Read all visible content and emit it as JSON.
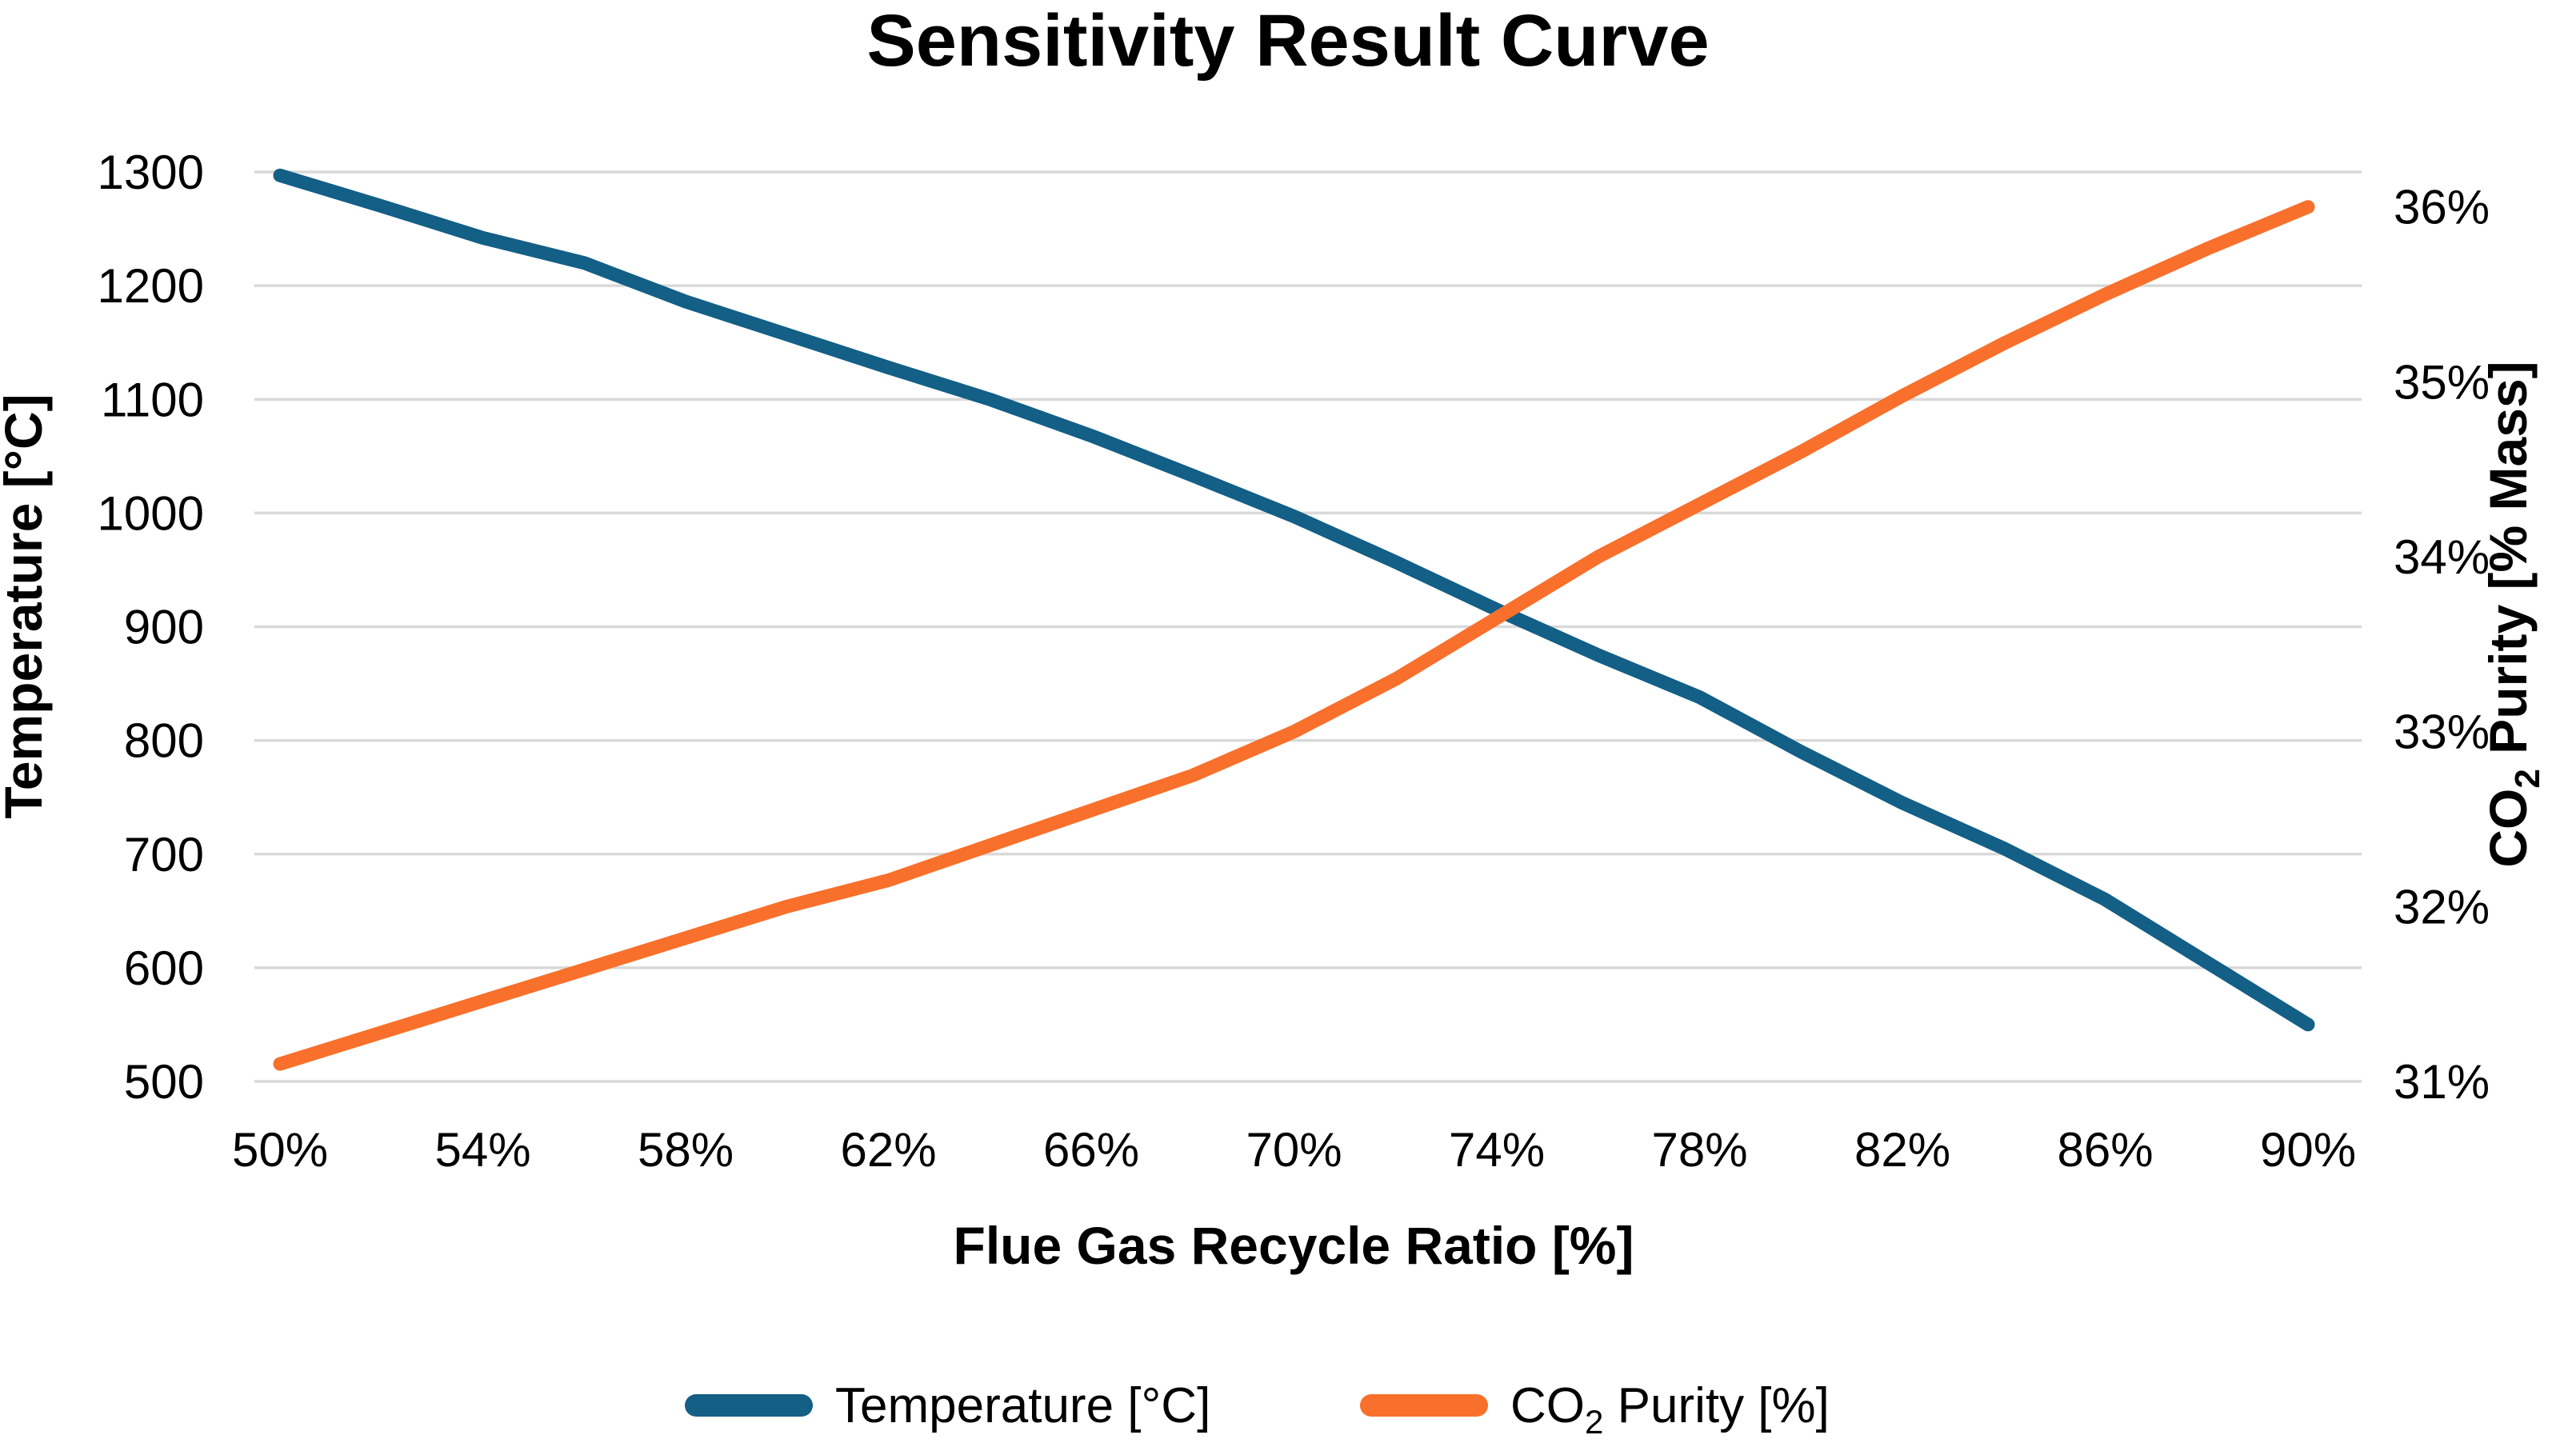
{
  "title": "Sensitivity Result Curve",
  "chart_data": {
    "type": "line",
    "title": "Sensitivity Result Curve",
    "xlabel": "Flue Gas Recycle Ratio [%]",
    "ylabel_left": "Temperature [°C]",
    "ylabel_right": "CO2 Purity [% Mass]",
    "x": [
      50,
      52,
      54,
      56,
      58,
      60,
      62,
      64,
      66,
      68,
      70,
      72,
      74,
      76,
      78,
      80,
      82,
      84,
      86,
      88,
      90
    ],
    "x_tick_labels": [
      "50%",
      "54%",
      "58%",
      "62%",
      "66%",
      "70%",
      "74%",
      "78%",
      "82%",
      "86%",
      "90%"
    ],
    "x_tick_values": [
      50,
      54,
      58,
      62,
      66,
      70,
      74,
      78,
      82,
      86,
      90
    ],
    "series": [
      {
        "name": "Temperature [°C]",
        "yaxis": "left",
        "color": "#135F86",
        "values": [
          1297,
          1270,
          1242,
          1220,
          1186,
          1157,
          1128,
          1100,
          1068,
          1033,
          997,
          957,
          915,
          875,
          838,
          790,
          745,
          705,
          660,
          605,
          550
        ]
      },
      {
        "name": "CO2 Purity [%]",
        "yaxis": "right",
        "color": "#F8702B",
        "values": [
          31.1,
          31.28,
          31.46,
          31.64,
          31.82,
          32.0,
          32.15,
          32.35,
          32.55,
          32.75,
          33.0,
          33.3,
          33.65,
          34.0,
          34.3,
          34.6,
          34.92,
          35.22,
          35.5,
          35.76,
          36.0
        ]
      }
    ],
    "y_left": {
      "lim": [
        500,
        1300
      ],
      "ticks": [
        1300,
        1200,
        1100,
        1000,
        900,
        800,
        700,
        600,
        500
      ]
    },
    "y_right": {
      "lim": [
        31,
        36.2
      ],
      "tick_values": [
        36,
        35,
        34,
        33,
        32,
        31
      ],
      "tick_labels": [
        "36%",
        "35%",
        "34%",
        "33%",
        "32%",
        "31%"
      ]
    },
    "grid": "horizontal-only",
    "legend_position": "bottom"
  },
  "axis_titles": {
    "left": "Temperature [°C]",
    "right_prefix": "CO",
    "right_sub": "2",
    "right_suffix": " Purity [% Mass]",
    "bottom": "Flue Gas Recycle Ratio [%]"
  },
  "legend": {
    "temp_label": "Temperature [°C]",
    "co2_prefix": "CO",
    "co2_sub": "2",
    "co2_suffix": " Purity [%]"
  },
  "colors": {
    "temperature": "#135F86",
    "co2_purity": "#F8702B",
    "gridline": "#D9D9D9",
    "text": "#000000",
    "background": "#FFFFFF"
  }
}
